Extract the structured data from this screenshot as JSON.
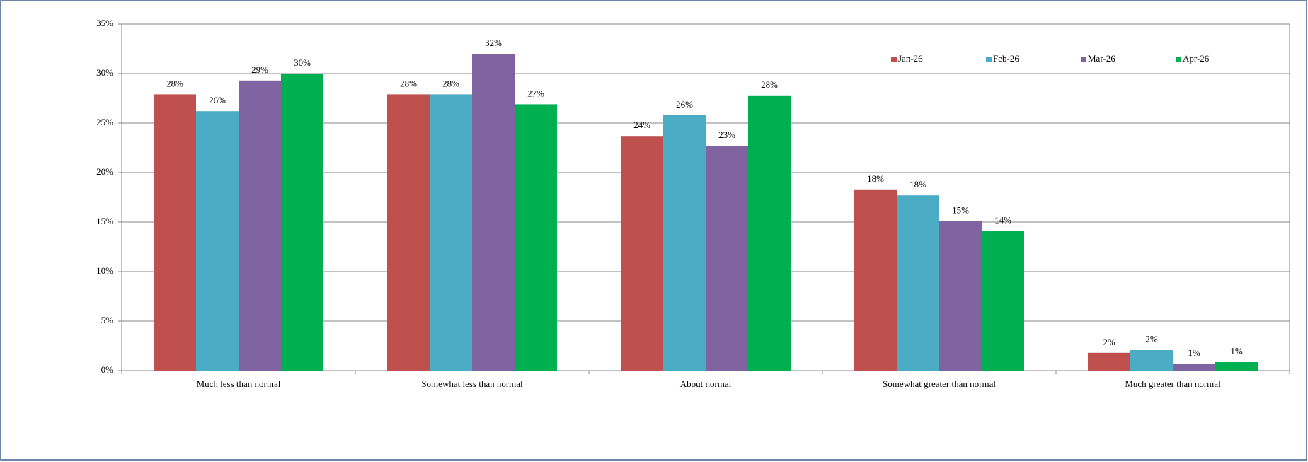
{
  "chart_data": {
    "type": "bar",
    "categories": [
      "Much less than normal",
      "Somewhat less than normal",
      "About normal",
      "Somewhat greater than normal",
      "Much greater than normal"
    ],
    "series": [
      {
        "name": "Jan-26",
        "color": "#c0504d",
        "values": [
          27.9,
          27.9,
          23.7,
          18.3,
          1.8
        ],
        "value_labels": [
          "28%",
          "28%",
          "24%",
          "18%",
          "2%"
        ]
      },
      {
        "name": "Feb-26",
        "color": "#4bacc6",
        "values": [
          26.2,
          27.9,
          25.8,
          17.7,
          2.1
        ],
        "value_labels": [
          "26%",
          "28%",
          "26%",
          "18%",
          "2%"
        ]
      },
      {
        "name": "Mar-26",
        "color": "#8064a2",
        "values": [
          29.3,
          32.0,
          22.7,
          15.1,
          0.7
        ],
        "value_labels": [
          "29%",
          "32%",
          "23%",
          "15%",
          "1%"
        ]
      },
      {
        "name": "Apr-26",
        "color": "#00b050",
        "values": [
          30.0,
          26.9,
          27.8,
          14.1,
          0.9
        ],
        "value_labels": [
          "30%",
          "27%",
          "28%",
          "14%",
          "1%"
        ]
      }
    ],
    "ylim": [
      0,
      35
    ],
    "yticks": [
      {
        "value": 0,
        "label": "0%"
      },
      {
        "value": 5,
        "label": "5%"
      },
      {
        "value": 10,
        "label": "10%"
      },
      {
        "value": 15,
        "label": "15%"
      },
      {
        "value": 20,
        "label": "20%"
      },
      {
        "value": 25,
        "label": "25%"
      },
      {
        "value": 30,
        "label": "30%"
      },
      {
        "value": 35,
        "label": "35%"
      }
    ],
    "grid": true,
    "legend_position": "top-right"
  }
}
